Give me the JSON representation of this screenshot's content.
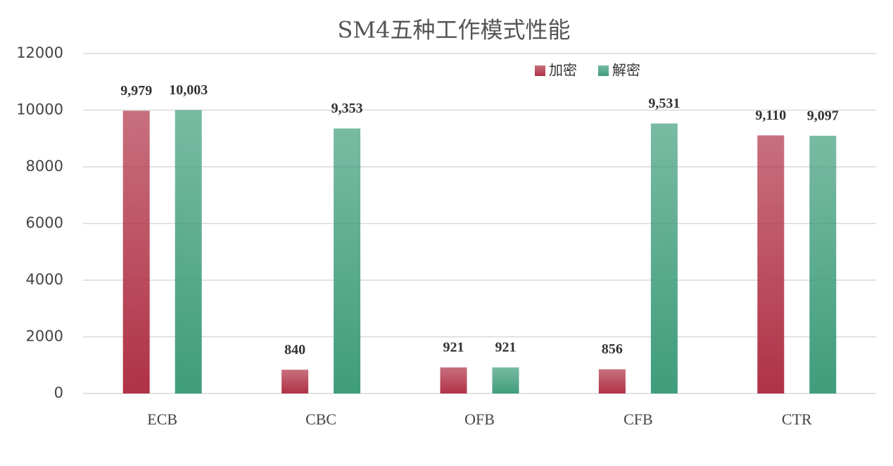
{
  "chart_data": {
    "type": "bar",
    "title": "SM4五种工作模式性能",
    "categories": [
      "ECB",
      "CBC",
      "OFB",
      "CFB",
      "CTR"
    ],
    "series": [
      {
        "name": "加密",
        "color": "#b03246",
        "values": [
          9979,
          840,
          921,
          856,
          9110
        ],
        "value_labels": [
          "9,979",
          "840",
          "921",
          "856",
          "9,110"
        ]
      },
      {
        "name": "解密",
        "color": "#3f9d7b",
        "values": [
          10003,
          9353,
          921,
          9531,
          9097
        ],
        "value_labels": [
          "10,003",
          "9,353",
          "921",
          "9,531",
          "9,097"
        ]
      }
    ],
    "ylim": [
      0,
      12000
    ],
    "yticks": [
      0,
      2000,
      4000,
      6000,
      8000,
      10000,
      12000
    ],
    "grid": true,
    "legend": "top-right"
  }
}
